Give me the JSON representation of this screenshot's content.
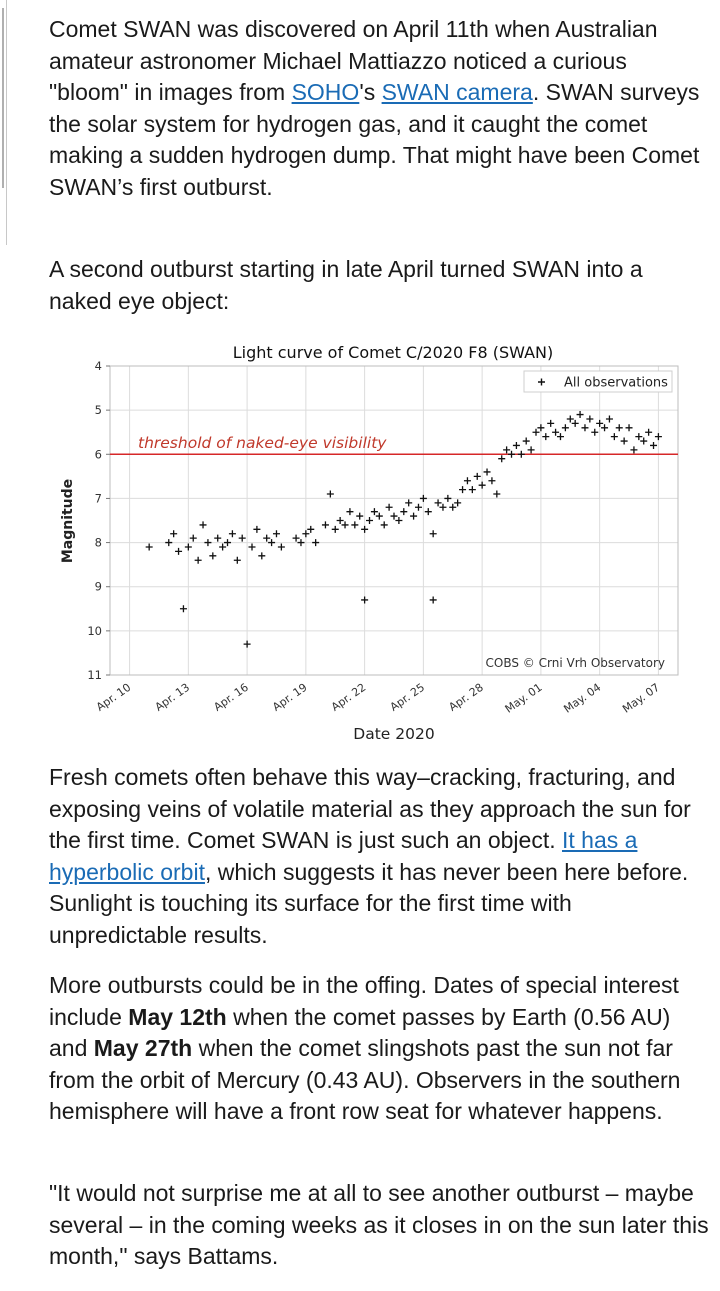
{
  "article": {
    "p1": {
      "t1": "Comet SWAN was discovered on April 11th when Australian amateur astronomer Michael Mattiazzo noticed a curious \"bloom\" in images from ",
      "link1": "SOHO",
      "t2": "'s ",
      "link2": "SWAN camera",
      "t3": ". SWAN surveys the solar system for hydrogen gas, and it caught the comet making a sudden hydrogen dump. That might have been Comet SWAN’s first outburst."
    },
    "p2": "A second outburst starting in late April turned SWAN into a naked eye object:",
    "p3": {
      "t1": "Fresh comets often behave this way–cracking, fracturing, and exposing veins of volatile material as they approach the sun for the first time. Comet SWAN is just such an object. ",
      "link": "It has a hyperbolic orbit",
      "t2": ", which suggests it has never been here before. Sunlight is touching its surface for the first time with unpredictable results."
    },
    "p4": {
      "t1": "More outbursts could be in the offing. Dates of special interest include ",
      "b1": "May 12th",
      "t2": " when the comet passes by Earth (0.56 AU) and ",
      "b2": "May 27th",
      "t3": " when the comet slingshots past the sun not far from the orbit of Mercury (0.43 AU). Observers in the southern hemisphere will have a front row seat for whatever happens."
    },
    "p5": "\"It would not surprise me at all to see another outburst – maybe several – in the coming weeks as it closes in on the sun later this month,\" says Battams."
  },
  "colors": {
    "link": "#1a6bb5",
    "threshold": "#d62728",
    "marker": "#111111",
    "grid": "#dcdcdc"
  },
  "chart_data": {
    "type": "scatter",
    "title": "Light curve of Comet C/2020 F8 (SWAN)",
    "xlabel": "Date 2020",
    "ylabel": "Magnitude",
    "y_inverted": true,
    "ylim": [
      4,
      11
    ],
    "xlim": [
      "2020-04-09",
      "2020-05-08"
    ],
    "yticks": [
      4,
      5,
      6,
      7,
      8,
      9,
      10,
      11
    ],
    "xticks": [
      "Apr. 10",
      "Apr. 13",
      "Apr. 16",
      "Apr. 19",
      "Apr. 22",
      "Apr. 25",
      "Apr. 28",
      "May. 01",
      "May. 04",
      "May. 07"
    ],
    "xtick_dates": [
      "2020-04-10",
      "2020-04-13",
      "2020-04-16",
      "2020-04-19",
      "2020-04-22",
      "2020-04-25",
      "2020-04-28",
      "2020-05-01",
      "2020-05-04",
      "2020-05-07"
    ],
    "grid": true,
    "legend": {
      "placement": "top-right",
      "entry": "All observations"
    },
    "credit": "COBS © Crni Vrh Observatory",
    "threshold": {
      "y": 6,
      "label": "threshold of naked-eye visibility"
    },
    "series": [
      {
        "name": "All observations",
        "marker": "+",
        "points": [
          [
            "2020-04-11T00:00",
            8.1
          ],
          [
            "2020-04-12T00:00",
            8.0
          ],
          [
            "2020-04-12T06:00",
            7.8
          ],
          [
            "2020-04-12T12:00",
            8.2
          ],
          [
            "2020-04-12T18:00",
            9.5
          ],
          [
            "2020-04-13T00:00",
            8.1
          ],
          [
            "2020-04-13T06:00",
            7.9
          ],
          [
            "2020-04-13T12:00",
            8.4
          ],
          [
            "2020-04-13T18:00",
            7.6
          ],
          [
            "2020-04-14T00:00",
            8.0
          ],
          [
            "2020-04-14T06:00",
            8.3
          ],
          [
            "2020-04-14T12:00",
            7.9
          ],
          [
            "2020-04-14T18:00",
            8.1
          ],
          [
            "2020-04-15T00:00",
            8.0
          ],
          [
            "2020-04-15T06:00",
            7.8
          ],
          [
            "2020-04-15T12:00",
            8.4
          ],
          [
            "2020-04-15T18:00",
            7.9
          ],
          [
            "2020-04-16T00:00",
            10.3
          ],
          [
            "2020-04-16T06:00",
            8.1
          ],
          [
            "2020-04-16T12:00",
            7.7
          ],
          [
            "2020-04-16T18:00",
            8.3
          ],
          [
            "2020-04-17T00:00",
            7.9
          ],
          [
            "2020-04-17T06:00",
            8.0
          ],
          [
            "2020-04-17T12:00",
            7.8
          ],
          [
            "2020-04-17T18:00",
            8.1
          ],
          [
            "2020-04-18T12:00",
            7.9
          ],
          [
            "2020-04-18T18:00",
            8.0
          ],
          [
            "2020-04-19T00:00",
            7.8
          ],
          [
            "2020-04-19T06:00",
            7.7
          ],
          [
            "2020-04-19T12:00",
            8.0
          ],
          [
            "2020-04-20T00:00",
            7.6
          ],
          [
            "2020-04-20T06:00",
            6.9
          ],
          [
            "2020-04-20T12:00",
            7.7
          ],
          [
            "2020-04-20T18:00",
            7.5
          ],
          [
            "2020-04-21T00:00",
            7.6
          ],
          [
            "2020-04-21T06:00",
            7.3
          ],
          [
            "2020-04-21T12:00",
            7.6
          ],
          [
            "2020-04-21T18:00",
            7.4
          ],
          [
            "2020-04-22T00:00",
            7.7
          ],
          [
            "2020-04-22T00:00",
            9.3
          ],
          [
            "2020-04-22T06:00",
            7.5
          ],
          [
            "2020-04-22T12:00",
            7.3
          ],
          [
            "2020-04-22T18:00",
            7.4
          ],
          [
            "2020-04-23T00:00",
            7.6
          ],
          [
            "2020-04-23T06:00",
            7.2
          ],
          [
            "2020-04-23T12:00",
            7.4
          ],
          [
            "2020-04-23T18:00",
            7.5
          ],
          [
            "2020-04-24T00:00",
            7.3
          ],
          [
            "2020-04-24T06:00",
            7.1
          ],
          [
            "2020-04-24T12:00",
            7.4
          ],
          [
            "2020-04-24T18:00",
            7.2
          ],
          [
            "2020-04-25T00:00",
            7.0
          ],
          [
            "2020-04-25T06:00",
            7.3
          ],
          [
            "2020-04-25T12:00",
            9.3
          ],
          [
            "2020-04-25T12:00",
            7.8
          ],
          [
            "2020-04-25T18:00",
            7.1
          ],
          [
            "2020-04-26T00:00",
            7.2
          ],
          [
            "2020-04-26T06:00",
            7.0
          ],
          [
            "2020-04-26T12:00",
            7.2
          ],
          [
            "2020-04-26T18:00",
            7.1
          ],
          [
            "2020-04-27T00:00",
            6.8
          ],
          [
            "2020-04-27T06:00",
            6.6
          ],
          [
            "2020-04-27T12:00",
            6.8
          ],
          [
            "2020-04-27T18:00",
            6.5
          ],
          [
            "2020-04-28T00:00",
            6.7
          ],
          [
            "2020-04-28T06:00",
            6.4
          ],
          [
            "2020-04-28T12:00",
            6.6
          ],
          [
            "2020-04-28T18:00",
            6.9
          ],
          [
            "2020-04-29T00:00",
            6.1
          ],
          [
            "2020-04-29T06:00",
            5.9
          ],
          [
            "2020-04-29T12:00",
            6.0
          ],
          [
            "2020-04-29T18:00",
            5.8
          ],
          [
            "2020-04-30T00:00",
            6.0
          ],
          [
            "2020-04-30T06:00",
            5.7
          ],
          [
            "2020-04-30T12:00",
            5.9
          ],
          [
            "2020-04-30T18:00",
            5.5
          ],
          [
            "2020-05-01T00:00",
            5.4
          ],
          [
            "2020-05-01T06:00",
            5.6
          ],
          [
            "2020-05-01T12:00",
            5.3
          ],
          [
            "2020-05-01T18:00",
            5.5
          ],
          [
            "2020-05-02T00:00",
            5.6
          ],
          [
            "2020-05-02T06:00",
            5.4
          ],
          [
            "2020-05-02T12:00",
            5.2
          ],
          [
            "2020-05-02T18:00",
            5.3
          ],
          [
            "2020-05-03T00:00",
            5.1
          ],
          [
            "2020-05-03T06:00",
            5.4
          ],
          [
            "2020-05-03T12:00",
            5.2
          ],
          [
            "2020-05-03T18:00",
            5.5
          ],
          [
            "2020-05-04T00:00",
            5.3
          ],
          [
            "2020-05-04T06:00",
            5.4
          ],
          [
            "2020-05-04T12:00",
            5.2
          ],
          [
            "2020-05-04T18:00",
            5.6
          ],
          [
            "2020-05-05T00:00",
            5.4
          ],
          [
            "2020-05-05T06:00",
            5.7
          ],
          [
            "2020-05-05T12:00",
            5.4
          ],
          [
            "2020-05-05T18:00",
            5.9
          ],
          [
            "2020-05-06T00:00",
            5.6
          ],
          [
            "2020-05-06T06:00",
            5.7
          ],
          [
            "2020-05-06T12:00",
            5.5
          ],
          [
            "2020-05-06T18:00",
            5.8
          ],
          [
            "2020-05-07T00:00",
            5.6
          ]
        ]
      }
    ]
  }
}
